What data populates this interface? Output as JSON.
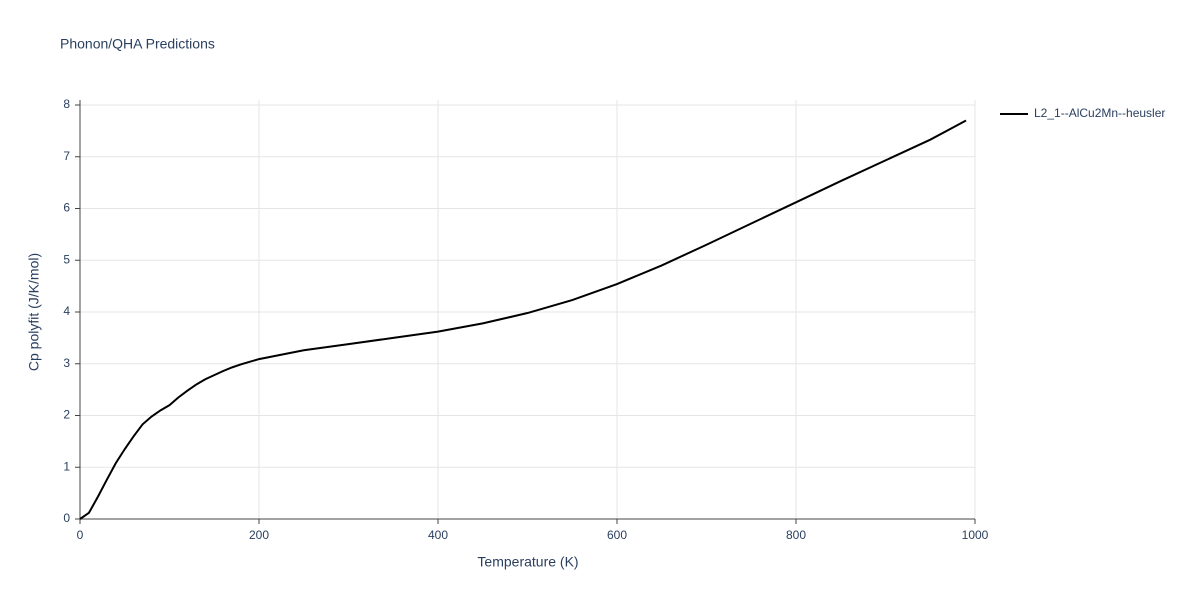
{
  "chart_data": {
    "type": "line",
    "title": "Phonon/QHA Predictions",
    "x_label": "Temperature (K)",
    "y_label": "Cp polyfit (J/K/mol)",
    "x": [
      0,
      10,
      20,
      30,
      40,
      50,
      60,
      70,
      80,
      90,
      100,
      110,
      120,
      130,
      140,
      150,
      160,
      170,
      180,
      190,
      200,
      250,
      300,
      350,
      400,
      450,
      500,
      550,
      600,
      650,
      700,
      750,
      800,
      850,
      900,
      950,
      990
    ],
    "series": [
      {
        "name": "L2_1--AlCu2Mn--heusler",
        "color": "#000000",
        "values": [
          0,
          0.12,
          0.43,
          0.76,
          1.08,
          1.35,
          1.6,
          1.83,
          1.98,
          2.1,
          2.2,
          2.35,
          2.48,
          2.6,
          2.7,
          2.78,
          2.86,
          2.93,
          2.99,
          3.04,
          3.09,
          3.26,
          3.38,
          3.5,
          3.62,
          3.78,
          3.98,
          4.23,
          4.54,
          4.9,
          5.3,
          5.71,
          6.12,
          6.53,
          6.93,
          7.33,
          7.7
        ]
      }
    ],
    "xlim": [
      0,
      1000
    ],
    "xticks": [
      0,
      200,
      400,
      600,
      800,
      1000
    ],
    "ylim": [
      0,
      8
    ],
    "yticks": [
      0,
      1,
      2,
      3,
      4,
      5,
      6,
      7,
      8
    ],
    "grid": true,
    "legend": "right"
  }
}
